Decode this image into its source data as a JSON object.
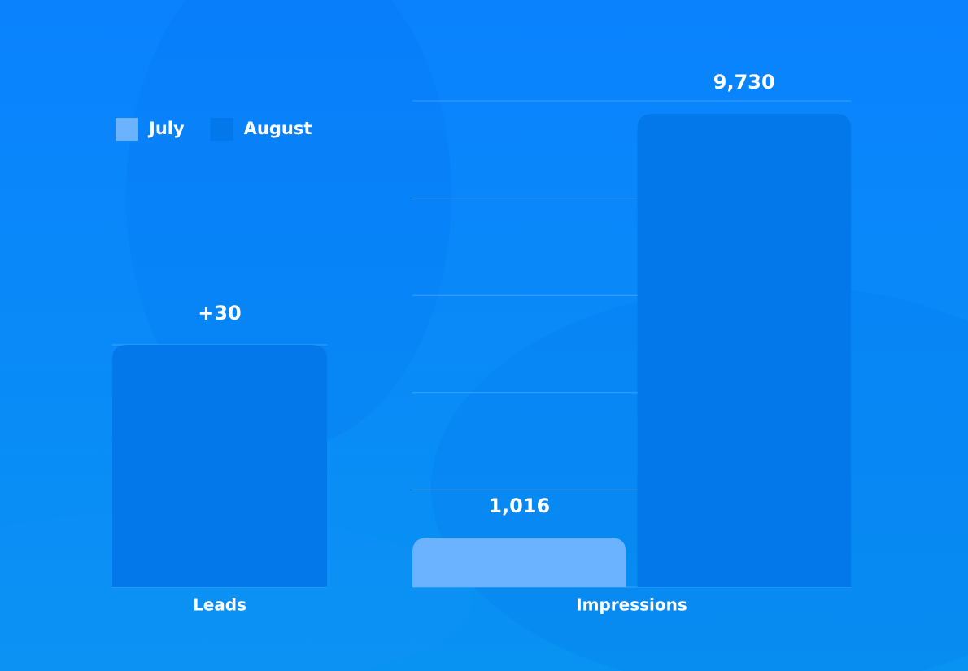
{
  "chart_data": [
    {
      "type": "bar",
      "categories": [
        "Leads"
      ],
      "series": [
        {
          "name": "July",
          "color": "#6bb3ff",
          "values": [
            null
          ]
        },
        {
          "name": "August",
          "color": "#0278ea",
          "values": [
            30
          ],
          "value_labels": [
            "+30"
          ]
        }
      ],
      "ylim": [
        0,
        30
      ],
      "yticks": [
        0,
        30
      ],
      "grid": true
    },
    {
      "type": "bar",
      "categories": [
        "Impressions"
      ],
      "series": [
        {
          "color": "#6bb3ff",
          "values": [
            1016
          ],
          "value_labels": [
            "1,016"
          ]
        },
        {
          "color": "#0278ea",
          "values": [
            9730
          ],
          "value_labels": [
            "9,730"
          ]
        }
      ],
      "ylim": [
        0,
        10000
      ],
      "yticks": [
        0,
        2000,
        4000,
        6000,
        8000,
        10000
      ],
      "grid": true
    }
  ]
}
